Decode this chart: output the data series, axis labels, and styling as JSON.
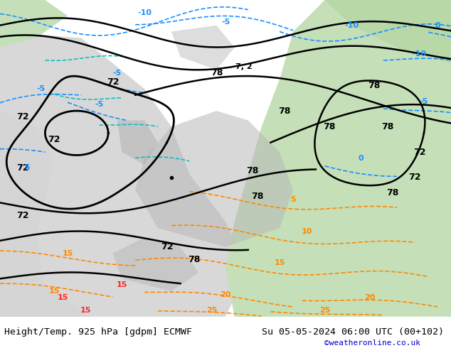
{
  "title_left": "Height/Temp. 925 hPa [gdpm] ECMWF",
  "title_right": "Su 05-05-2024 06:00 UTC (00+102)",
  "credit": "©weatheronline.co.uk",
  "fig_width": 6.34,
  "fig_height": 4.9,
  "dpi": 100,
  "title_fontsize": 9.5,
  "credit_fontsize": 8,
  "credit_color": "#0000cc",
  "title_color": "#000000",
  "bottom_bar_color": "#ffffff",
  "bottom_bar_height": 0.09,
  "map_bg_color": "#e0ede0"
}
